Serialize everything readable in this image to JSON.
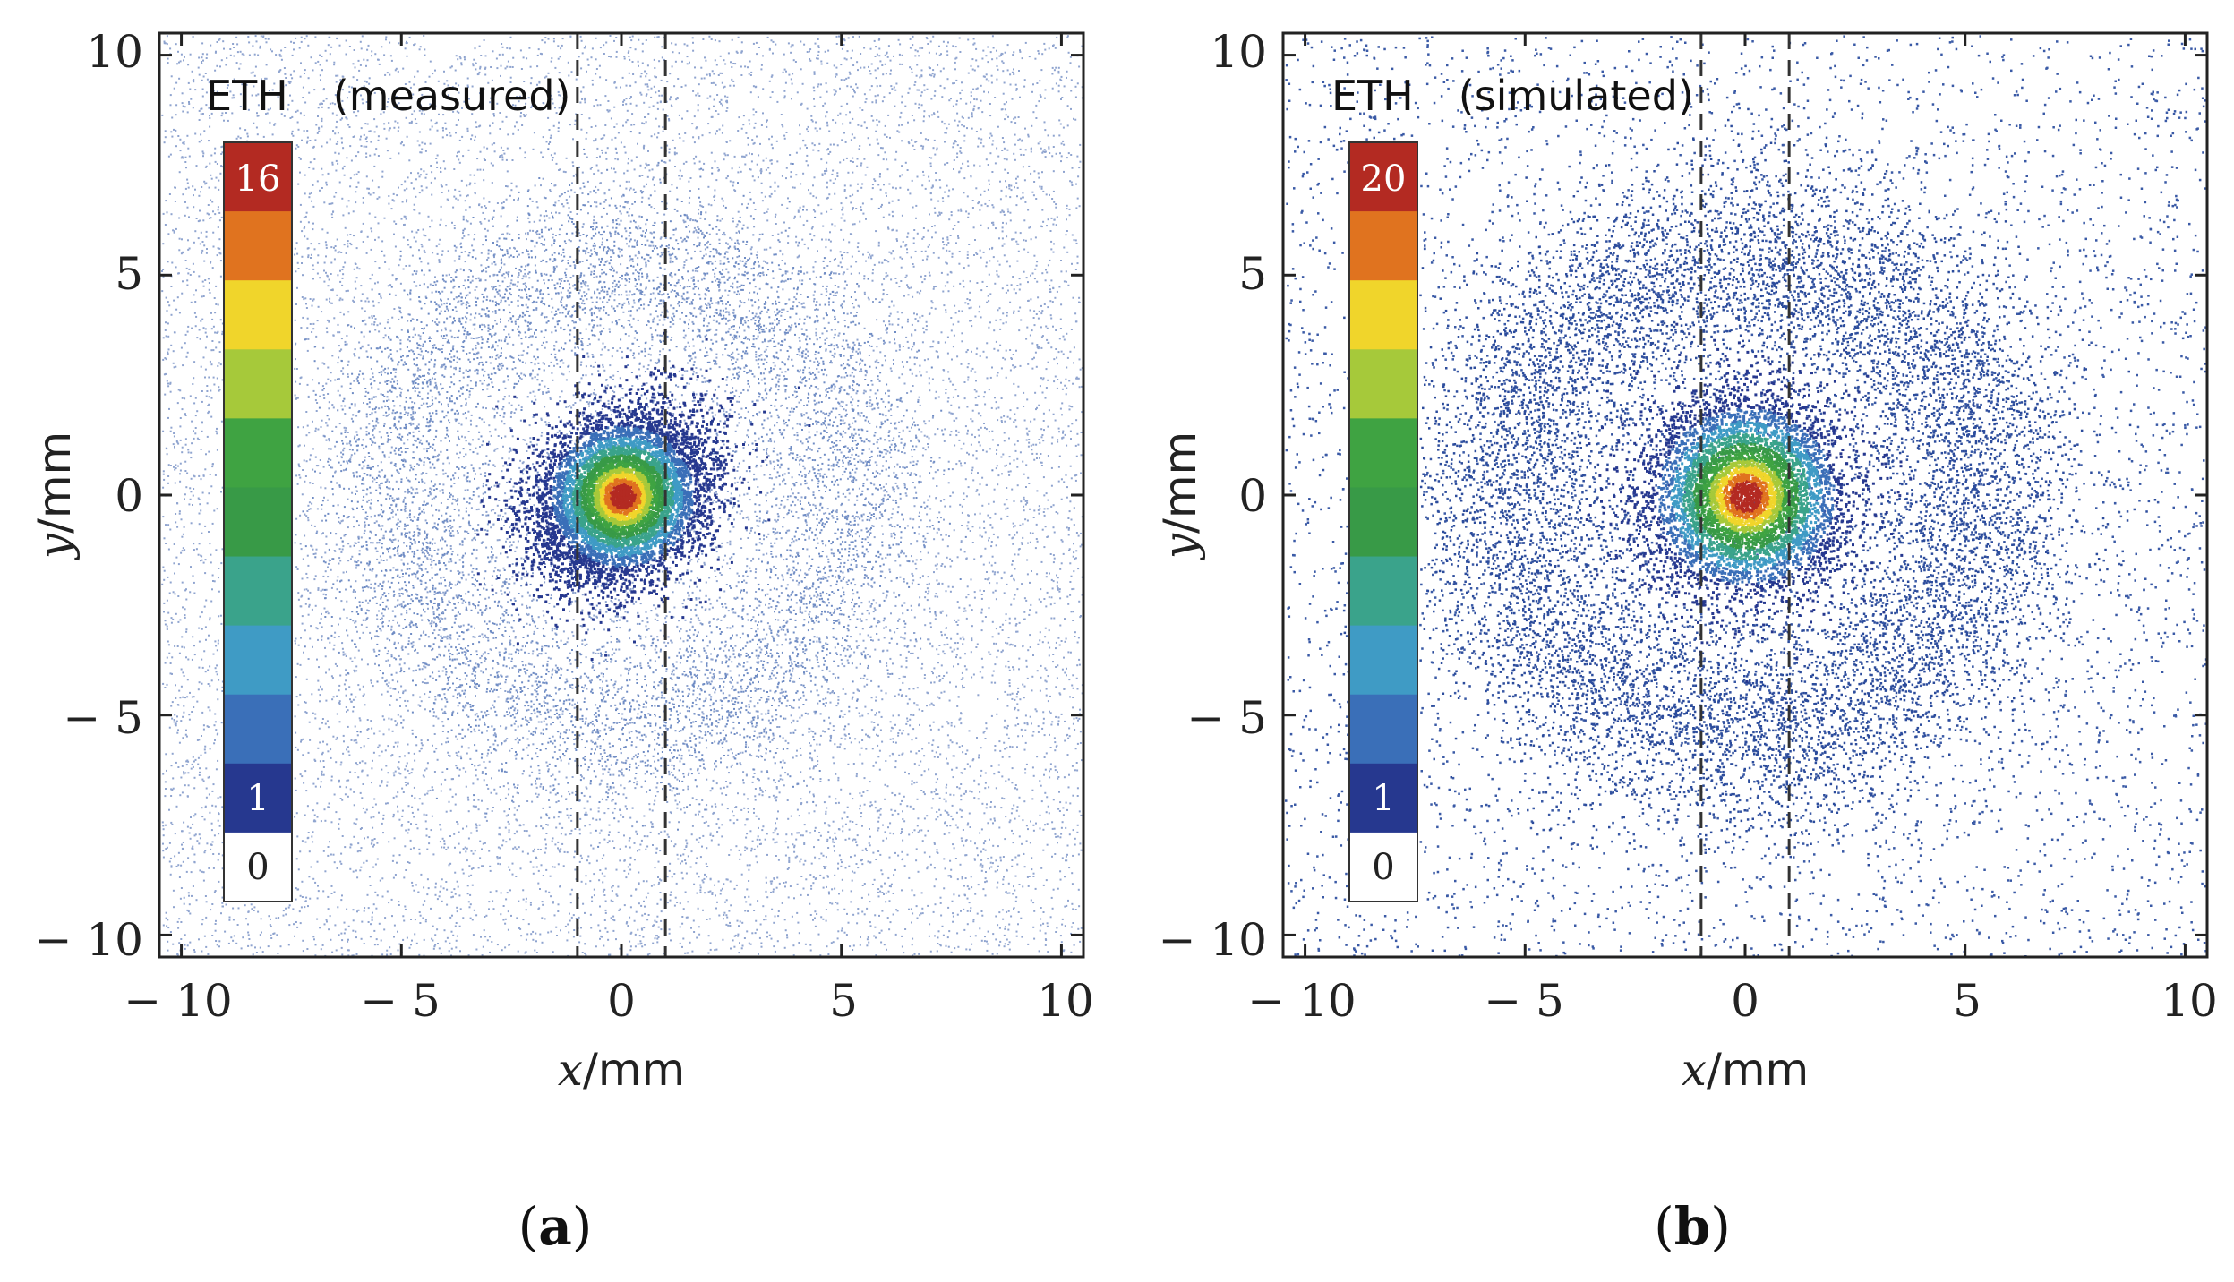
{
  "figure": {
    "panels": [
      {
        "letter": "a",
        "letter_display": "(a)",
        "title_prefix": "ETH",
        "title_mode": "(measured)"
      },
      {
        "letter": "b",
        "letter_display": "(b)",
        "title_prefix": "ETH",
        "title_mode": "(simulated)"
      }
    ]
  },
  "chart_data": [
    {
      "type": "heatmap",
      "title": "ETH (measured)",
      "xlabel": "x/mm",
      "ylabel": "y/mm",
      "xlim": [
        -10.5,
        10.5
      ],
      "ylim": [
        -10.5,
        10.5
      ],
      "xticks": [
        -10,
        -5,
        0,
        5,
        10
      ],
      "yticks": [
        -10,
        -5,
        0,
        5,
        10
      ],
      "xtick_labels": [
        "− 10",
        "− 5",
        "0",
        "5",
        "10"
      ],
      "ytick_labels": [
        "− 10",
        "− 5",
        "0",
        "5",
        "10"
      ],
      "x_unit_var": "x",
      "y_unit_var": "y",
      "unit": "/mm",
      "guide_lines_x": [
        -1,
        1
      ],
      "colorbar": {
        "min_label": "0",
        "low_label": "1",
        "max_label": "16",
        "min": 0,
        "max": 16,
        "levels": 11,
        "colors": [
          "#ffffff",
          "#26388f",
          "#3a6fb8",
          "#3f9bc5",
          "#3aa38b",
          "#389a47",
          "#3fa342",
          "#a6c93a",
          "#f0d52b",
          "#e0731f",
          "#b32a22"
        ]
      },
      "distribution": {
        "core_center": [
          0,
          0
        ],
        "core_radius": 1.6,
        "core_peak": 16,
        "core_elongation": "diagonal",
        "ring_radius": 5.2,
        "ring_width": 1.8,
        "background_level": 0.3
      }
    },
    {
      "type": "heatmap",
      "title": "ETH (simulated)",
      "xlabel": "x/mm",
      "ylabel": "y/mm",
      "xlim": [
        -10.5,
        10.5
      ],
      "ylim": [
        -10.5,
        10.5
      ],
      "xticks": [
        -10,
        -5,
        0,
        5,
        10
      ],
      "yticks": [
        -10,
        -5,
        0,
        5,
        10
      ],
      "xtick_labels": [
        "− 10",
        "− 5",
        "0",
        "5",
        "10"
      ],
      "ytick_labels": [
        "− 10",
        "− 5",
        "0",
        "5",
        "10"
      ],
      "x_unit_var": "x",
      "y_unit_var": "y",
      "unit": "/mm",
      "guide_lines_x": [
        -1,
        1
      ],
      "colorbar": {
        "min_label": "0",
        "low_label": "1",
        "max_label": "20",
        "min": 0,
        "max": 20,
        "levels": 11,
        "colors": [
          "#ffffff",
          "#26388f",
          "#3a6fb8",
          "#3f9bc5",
          "#3aa38b",
          "#389a47",
          "#3fa342",
          "#a6c93a",
          "#f0d52b",
          "#e0731f",
          "#b32a22"
        ]
      },
      "distribution": {
        "core_center": [
          0,
          0
        ],
        "core_radius": 2.0,
        "core_peak": 20,
        "core_elongation": "round",
        "ring_radius": 5.5,
        "ring_width": 2.2,
        "background_level": 0.15
      }
    }
  ]
}
